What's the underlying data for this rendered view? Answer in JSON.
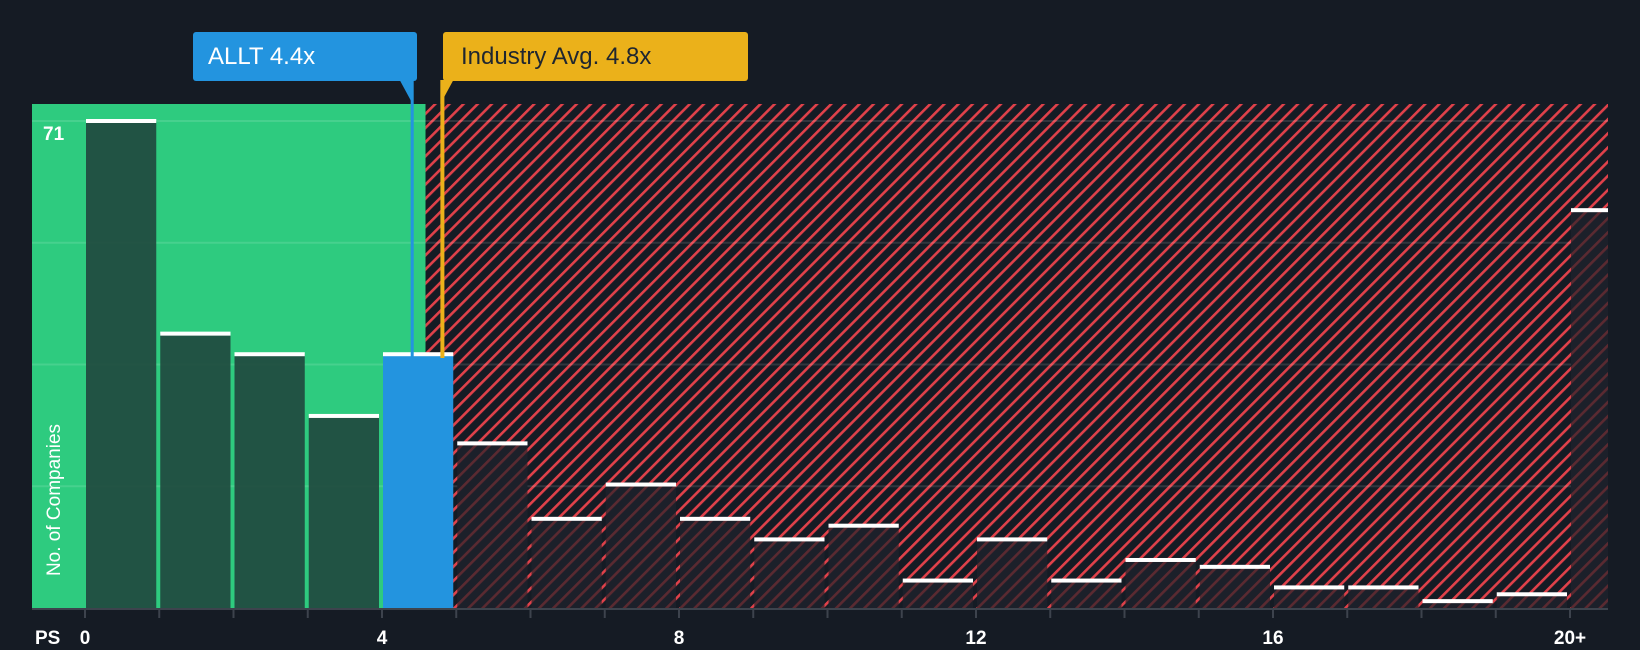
{
  "callouts": {
    "company": {
      "label": "ALLT 4.4x",
      "color": "#2394df",
      "value": 4.4
    },
    "industry": {
      "label": "Industry Avg. 4.8x",
      "color": "#ebb11a",
      "value": 4.8
    }
  },
  "axis": {
    "x_prefix": "PS",
    "x_ticks": [
      "0",
      "4",
      "8",
      "12",
      "16",
      "20+"
    ],
    "y_label": "No. of Companies",
    "y_max_label": "71"
  },
  "colors": {
    "background": "#151b24",
    "undervalued_zone": "#2ecb7f",
    "undervalued_bar": "#21493f",
    "overvalued_hatch": "#e0414a",
    "company_bar": "#2394df",
    "bar_cap": "#ffffff"
  },
  "chart_data": {
    "type": "bar",
    "title": "",
    "xlabel": "PS",
    "ylabel": "No. of Companies",
    "categories": [
      "0-1",
      "1-2",
      "2-3",
      "3-4",
      "4-5",
      "5-6",
      "6-7",
      "7-8",
      "8-9",
      "9-10",
      "10-11",
      "11-12",
      "12-13",
      "13-14",
      "14-15",
      "15-16",
      "16-17",
      "17-18",
      "18-19",
      "19-20",
      "20+"
    ],
    "values": [
      71,
      40,
      37,
      28,
      37,
      24,
      13,
      18,
      13,
      10,
      12,
      4,
      10,
      4,
      7,
      6,
      3,
      3,
      1,
      2,
      58
    ],
    "highlight_bin": "4-5",
    "x_ticks": [
      0,
      4,
      8,
      12,
      16,
      "20+"
    ],
    "ylim": [
      0,
      71
    ],
    "grid": true,
    "annotations": [
      {
        "text": "ALLT 4.4x",
        "x": 4.4
      },
      {
        "text": "Industry Avg. 4.8x",
        "x": 4.8
      }
    ],
    "zones": [
      {
        "name": "undervalued",
        "from": 0,
        "to": 4.6,
        "color": "#2ecb7f"
      },
      {
        "name": "overvalued",
        "from": 4.6,
        "to": "20+",
        "style": "red hatched"
      }
    ]
  }
}
